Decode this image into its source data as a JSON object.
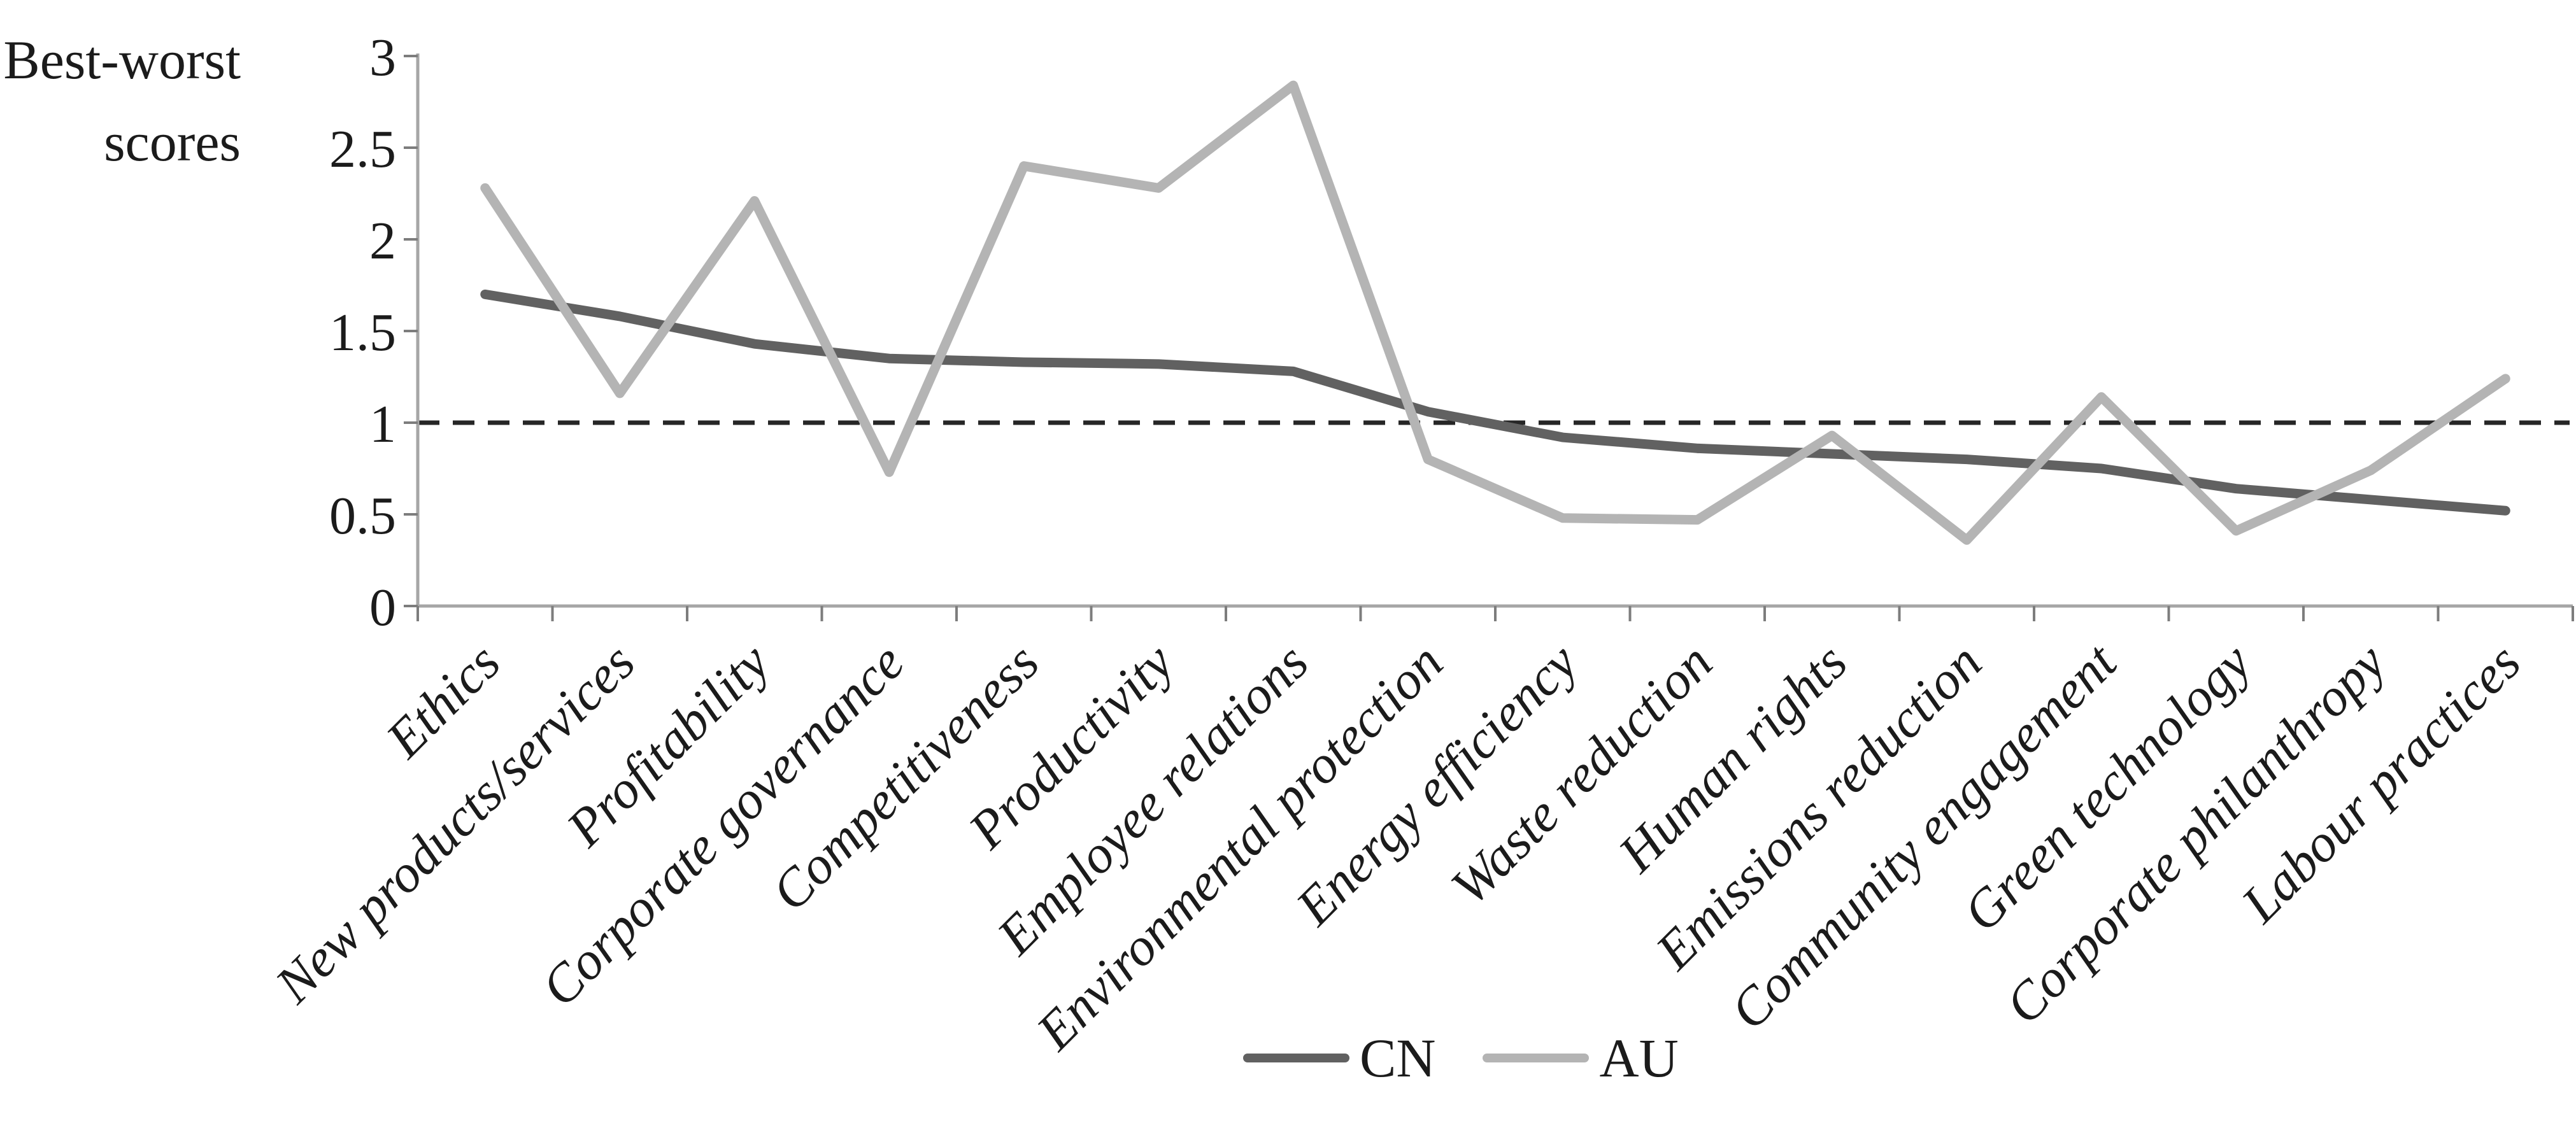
{
  "figure": {
    "ylabel_lines": [
      "Best-worst",
      "scores"
    ]
  },
  "chart_data": {
    "type": "line",
    "title": "",
    "xlabel": "",
    "ylabel": "Best-worst scores",
    "ylim": [
      0,
      3
    ],
    "ytick_labels": [
      "0",
      "0.5",
      "1",
      "1.5",
      "2",
      "2.5",
      "3"
    ],
    "grid": false,
    "legend_position": "bottom-center",
    "categories": [
      "Ethics",
      "New products/services",
      "Profitability",
      "Corporate governance",
      "Competitiveness",
      "Productivity",
      "Employee relations",
      "Environmental protection",
      "Energy efficiency",
      "Waste reduction",
      "Human rights",
      "Emissions reduction",
      "Community engagement",
      "Green technology",
      "Corporate philanthropy",
      "Labour practices"
    ],
    "series": [
      {
        "name": "CN",
        "color": "#616161",
        "values": [
          1.7,
          1.58,
          1.43,
          1.35,
          1.33,
          1.32,
          1.28,
          1.06,
          0.92,
          0.86,
          0.83,
          0.8,
          0.75,
          0.64,
          0.58,
          0.52
        ]
      },
      {
        "name": "AU",
        "color": "#b4b4b4",
        "values": [
          2.28,
          1.16,
          2.21,
          0.73,
          2.4,
          2.28,
          2.84,
          0.8,
          0.48,
          0.47,
          0.93,
          0.36,
          1.14,
          0.41,
          0.74,
          1.24
        ]
      }
    ],
    "baseline": {
      "value": 1,
      "style": "dashed",
      "color": "#262626"
    },
    "axis_color": "#a6a6a6",
    "tick_color": "#7d7d7d"
  }
}
